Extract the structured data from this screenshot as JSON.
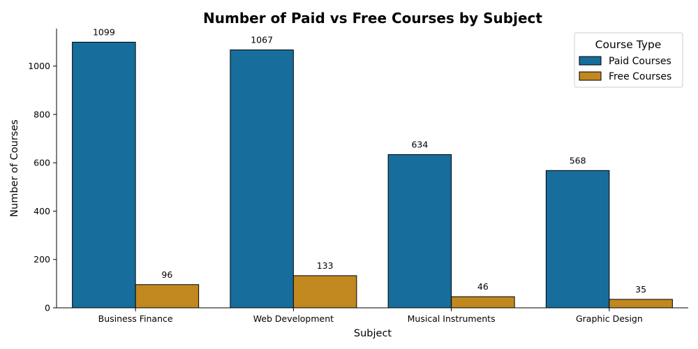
{
  "chart_data": {
    "type": "bar",
    "title": "Number of Paid vs Free Courses by Subject",
    "xlabel": "Subject",
    "ylabel": "Number of Courses",
    "categories": [
      "Business Finance",
      "Web Development",
      "Musical Instruments",
      "Graphic Design"
    ],
    "series": [
      {
        "name": "Paid Courses",
        "values": [
          1099,
          1067,
          634,
          568
        ],
        "color": "#176d9c"
      },
      {
        "name": "Free Courses",
        "values": [
          96,
          133,
          46,
          35
        ],
        "color": "#c0881f"
      }
    ],
    "ylim": [
      0,
      1155
    ],
    "yticks": [
      0,
      200,
      400,
      600,
      800,
      1000
    ],
    "legend": {
      "title": "Course Type",
      "position": "top-right"
    },
    "grid": false
  }
}
